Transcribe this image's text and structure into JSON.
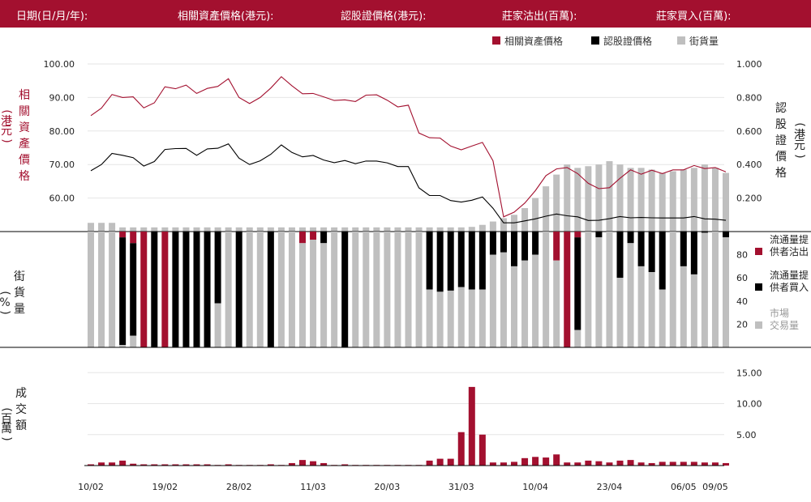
{
  "header": {
    "date_label": "日期(日/月/年):",
    "asset_price_label": "相關資產價格(港元):",
    "warrant_price_label": "認股證價格(港元):",
    "mm_sell_label": "莊家沽出(百萬):",
    "mm_buy_label": "莊家買入(百萬):"
  },
  "colors": {
    "brand": "#a3102f",
    "black": "#000000",
    "grey": "#bfbfbf"
  },
  "chart_data": [
    {
      "type": "line",
      "legend": [
        "相關資產價格",
        "認股證價格",
        "街貨量"
      ],
      "left_axis_label": [
        "(",
        "港",
        "元",
        ")",
        "相",
        "關",
        "資",
        "產",
        "價",
        "格"
      ],
      "right_axis_label": [
        "(",
        "港",
        "元",
        ")",
        "認",
        "股",
        "證",
        "價",
        "格"
      ],
      "left_ticks": [
        "100.00",
        "90.00",
        "80.00",
        "70.00",
        "60.00"
      ],
      "right_ticks": [
        "1.000",
        "0.800",
        "0.600",
        "0.400",
        "0.200"
      ],
      "ylim_left": [
        50,
        100
      ],
      "ylim_right": [
        0,
        1
      ],
      "series": [
        {
          "name": "相關資產價格",
          "axis": "left",
          "values": [
            84.6,
            86.8,
            90.9,
            90.0,
            90.2,
            86.9,
            88.4,
            93.2,
            92.6,
            93.7,
            91.2,
            92.7,
            93.3,
            95.6,
            90.0,
            88.2,
            90.0,
            92.8,
            96.2,
            93.5,
            91.1,
            91.2,
            90.2,
            89.1,
            89.3,
            88.8,
            90.7,
            90.8,
            89.2,
            87.2,
            87.7,
            79.4,
            78.0,
            77.9,
            75.5,
            74.4,
            75.5,
            76.6,
            71.1,
            54.4,
            55.8,
            58.5,
            62.2,
            66.7,
            68.7,
            69.1,
            67.3,
            64.4,
            62.8,
            63.1,
            65.9,
            68.4,
            67.1,
            68.3,
            67.3,
            68.4,
            68.4,
            69.7,
            68.8,
            69.1,
            67.8
          ]
        },
        {
          "name": "認股證價格",
          "axis": "right",
          "values": [
            0.363,
            0.4,
            0.466,
            0.455,
            0.441,
            0.391,
            0.418,
            0.49,
            0.495,
            0.496,
            0.455,
            0.493,
            0.497,
            0.523,
            0.438,
            0.4,
            0.422,
            0.461,
            0.517,
            0.472,
            0.446,
            0.454,
            0.427,
            0.411,
            0.424,
            0.405,
            0.421,
            0.421,
            0.41,
            0.388,
            0.388,
            0.261,
            0.215,
            0.215,
            0.185,
            0.176,
            0.187,
            0.207,
            0.139,
            0.052,
            0.052,
            0.064,
            0.076,
            0.092,
            0.105,
            0.094,
            0.088,
            0.066,
            0.067,
            0.077,
            0.09,
            0.082,
            0.084,
            0.082,
            0.081,
            0.081,
            0.081,
            0.09,
            0.076,
            0.074,
            0.067
          ]
        },
        {
          "name": "街貨量",
          "axis": "right",
          "type": "bar",
          "values": [
            0.052,
            0.052,
            0.052,
            0.025,
            0.025,
            0.025,
            0.025,
            0.025,
            0.025,
            0.025,
            0.025,
            0.025,
            0.025,
            0.025,
            0.025,
            0.025,
            0.025,
            0.025,
            0.025,
            0.025,
            0.025,
            0.025,
            0.025,
            0.025,
            0.025,
            0.025,
            0.025,
            0.025,
            0.025,
            0.025,
            0.025,
            0.025,
            0.025,
            0.025,
            0.025,
            0.025,
            0.028,
            0.04,
            0.06,
            0.08,
            0.1,
            0.14,
            0.2,
            0.27,
            0.34,
            0.4,
            0.38,
            0.39,
            0.4,
            0.42,
            0.4,
            0.38,
            0.38,
            0.37,
            0.35,
            0.36,
            0.37,
            0.38,
            0.4,
            0.38,
            0.35
          ]
        }
      ]
    },
    {
      "type": "bar",
      "stacked": true,
      "axis_label": [
        "(",
        "%",
        ")",
        "街",
        "貨",
        "量"
      ],
      "ticks": [
        "80",
        "60",
        "40",
        "20"
      ],
      "ylim": [
        0,
        100
      ],
      "legend": [
        [
          "流通量提",
          "供者沽出"
        ],
        [
          "流通量提",
          "供者買入"
        ],
        [
          "市場",
          "交易量"
        ]
      ],
      "series": [
        {
          "name": "流通量提供者沽出",
          "values": [
            0,
            0,
            0,
            5,
            10,
            100,
            0,
            100,
            0,
            0,
            0,
            0,
            0,
            0,
            0,
            0,
            0,
            0,
            0,
            0,
            10,
            7,
            0,
            0,
            0,
            0,
            0,
            0,
            0,
            0,
            0,
            0,
            0,
            0,
            0,
            0,
            0,
            0,
            0,
            0,
            0,
            0,
            0,
            0,
            25,
            100,
            5,
            0,
            0,
            0,
            0,
            0,
            0,
            0,
            0,
            0,
            0,
            0,
            0,
            0,
            0
          ]
        },
        {
          "name": "流通量提供者買入",
          "values": [
            0,
            0,
            0,
            93,
            80,
            0,
            100,
            0,
            100,
            100,
            100,
            100,
            62,
            0,
            100,
            0,
            0,
            100,
            0,
            0,
            0,
            0,
            10,
            0,
            100,
            0,
            0,
            0,
            0,
            0,
            0,
            0,
            50,
            52,
            51,
            48,
            50,
            50,
            20,
            18,
            30,
            25,
            20,
            0,
            0,
            0,
            80,
            0,
            5,
            0,
            40,
            10,
            30,
            35,
            50,
            0,
            30,
            37,
            1,
            0,
            5
          ]
        },
        {
          "name": "市場交易量",
          "values": [
            100,
            100,
            100,
            2,
            10,
            0,
            0,
            0,
            0,
            0,
            0,
            0,
            38,
            100,
            0,
            100,
            100,
            0,
            100,
            100,
            90,
            93,
            90,
            100,
            0,
            100,
            100,
            100,
            100,
            100,
            100,
            100,
            50,
            48,
            49,
            52,
            50,
            50,
            80,
            82,
            70,
            75,
            80,
            100,
            75,
            0,
            15,
            100,
            95,
            100,
            60,
            90,
            70,
            65,
            50,
            100,
            70,
            63,
            99,
            100,
            95
          ]
        }
      ]
    },
    {
      "type": "bar",
      "axis_label": [
        "(",
        "百",
        "萬",
        ")",
        "成",
        "交",
        "額"
      ],
      "ticks": [
        "15.00",
        "10.00",
        "5.00"
      ],
      "ylim": [
        0,
        17
      ],
      "series": [
        {
          "name": "成交額",
          "values": [
            0.2,
            0.5,
            0.5,
            0.8,
            0.3,
            0.2,
            0.2,
            0.2,
            0.2,
            0.2,
            0.2,
            0.2,
            0.1,
            0.2,
            0.1,
            0.1,
            0.1,
            0.2,
            0.1,
            0.4,
            0.9,
            0.7,
            0.4,
            0.1,
            0.2,
            0.1,
            0.1,
            0.1,
            0.1,
            0.1,
            0.1,
            0.1,
            0.8,
            1.1,
            1.1,
            5.4,
            12.7,
            5.0,
            0.5,
            0.5,
            0.6,
            1.2,
            1.4,
            1.3,
            1.8,
            0.5,
            0.5,
            0.8,
            0.7,
            0.5,
            0.8,
            0.9,
            0.5,
            0.4,
            0.6,
            0.6,
            0.6,
            0.6,
            0.5,
            0.5,
            0.4
          ]
        }
      ]
    }
  ],
  "x_labels": [
    {
      "i": 0,
      "label": "10/02"
    },
    {
      "i": 7,
      "label": "19/02"
    },
    {
      "i": 14,
      "label": "28/02"
    },
    {
      "i": 21,
      "label": "11/03"
    },
    {
      "i": 28,
      "label": "20/03"
    },
    {
      "i": 35,
      "label": "31/03"
    },
    {
      "i": 42,
      "label": "10/04"
    },
    {
      "i": 49,
      "label": "23/04"
    },
    {
      "i": 56,
      "label": "06/05"
    },
    {
      "i": 59,
      "label": "09/05"
    }
  ]
}
